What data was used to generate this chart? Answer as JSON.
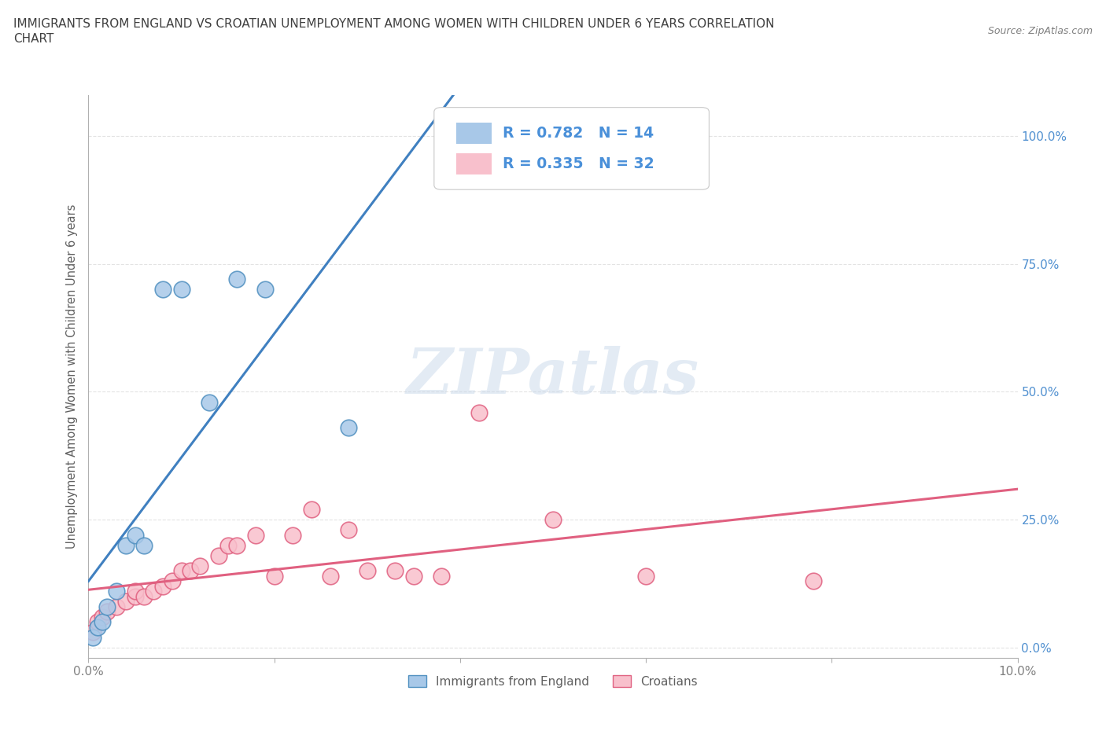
{
  "title_line1": "IMMIGRANTS FROM ENGLAND VS CROATIAN UNEMPLOYMENT AMONG WOMEN WITH CHILDREN UNDER 6 YEARS CORRELATION",
  "title_line2": "CHART",
  "source": "Source: ZipAtlas.com",
  "ylabel": "Unemployment Among Women with Children Under 6 years",
  "xlim": [
    0.0,
    0.1
  ],
  "ylim": [
    -0.02,
    1.08
  ],
  "xticks": [
    0.0,
    0.02,
    0.04,
    0.06,
    0.08,
    0.1
  ],
  "xtick_labels": [
    "0.0%",
    "",
    "",
    "",
    "",
    "10.0%"
  ],
  "yticks": [
    0.0,
    0.25,
    0.5,
    0.75,
    1.0
  ],
  "ytick_labels_right": [
    "0.0%",
    "25.0%",
    "50.0%",
    "75.0%",
    "100.0%"
  ],
  "england_fill_color": "#a8c8e8",
  "england_edge_color": "#5090c0",
  "croatian_fill_color": "#f8c0cc",
  "croatian_edge_color": "#e06080",
  "england_line_color": "#4080c0",
  "croatian_line_color": "#e06080",
  "legend_england_label": "Immigrants from England",
  "legend_croatian_label": "Croatians",
  "r_england": 0.782,
  "n_england": 14,
  "r_croatian": 0.335,
  "n_croatian": 32,
  "england_x": [
    0.0005,
    0.001,
    0.0015,
    0.002,
    0.003,
    0.004,
    0.005,
    0.006,
    0.008,
    0.01,
    0.013,
    0.016,
    0.019,
    0.028
  ],
  "england_y": [
    0.02,
    0.04,
    0.05,
    0.08,
    0.11,
    0.2,
    0.22,
    0.2,
    0.7,
    0.7,
    0.48,
    0.72,
    0.7,
    0.43
  ],
  "croatian_x": [
    0.0005,
    0.001,
    0.0015,
    0.002,
    0.003,
    0.004,
    0.005,
    0.005,
    0.006,
    0.007,
    0.008,
    0.009,
    0.01,
    0.011,
    0.012,
    0.014,
    0.015,
    0.016,
    0.018,
    0.02,
    0.022,
    0.024,
    0.026,
    0.028,
    0.03,
    0.033,
    0.035,
    0.038,
    0.042,
    0.05,
    0.06,
    0.078
  ],
  "croatian_y": [
    0.03,
    0.05,
    0.06,
    0.07,
    0.08,
    0.09,
    0.1,
    0.11,
    0.1,
    0.11,
    0.12,
    0.13,
    0.15,
    0.15,
    0.16,
    0.18,
    0.2,
    0.2,
    0.22,
    0.14,
    0.22,
    0.27,
    0.14,
    0.23,
    0.15,
    0.15,
    0.14,
    0.14,
    0.46,
    0.25,
    0.14,
    0.13
  ],
  "watermark": "ZIPatlas",
  "background_color": "#ffffff",
  "grid_color": "#d8d8d8",
  "title_color": "#404040",
  "axis_label_color": "#606060",
  "tick_label_color": "#808080",
  "right_tick_color": "#5090d0",
  "stat_label_color": "#4a90d9",
  "legend_box_edge": "#c8c8c8"
}
